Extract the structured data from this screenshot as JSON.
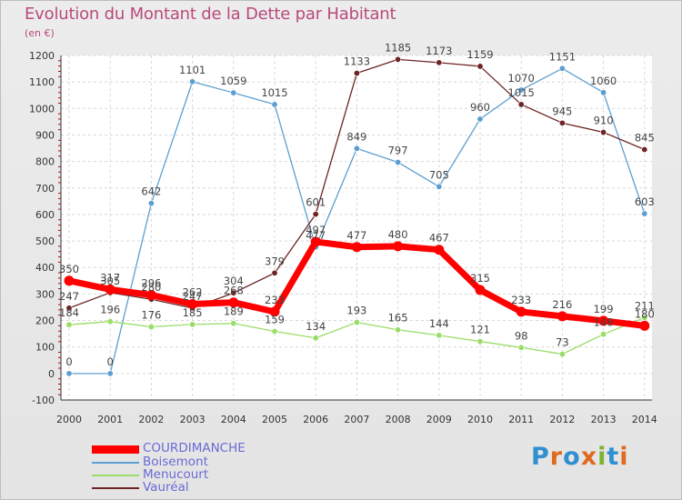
{
  "title": "Evolution du Montant de la Dette par Habitant",
  "unit": "(en €)",
  "logo": {
    "letters": [
      "P",
      "r",
      "o",
      "x",
      "i",
      "t",
      "i"
    ],
    "colors": [
      "#2f8fd0",
      "#e06a1e",
      "#2f8fd0",
      "#e06a1e",
      "#7ab32e",
      "#2f8fd0",
      "#e06a1e"
    ]
  },
  "chart_data": {
    "type": "line",
    "title": "Evolution du Montant de la Dette par Habitant",
    "ylabel": "(en €)",
    "xlabel": "",
    "x": [
      "2000",
      "2001",
      "2002",
      "2003",
      "2004",
      "2005",
      "2006",
      "2007",
      "2008",
      "2009",
      "2010",
      "2011",
      "2012",
      "2013",
      "2014"
    ],
    "ylim": [
      -100,
      1200
    ],
    "yticks": [
      "-100",
      "0",
      "100",
      "200",
      "300",
      "400",
      "500",
      "600",
      "700",
      "800",
      "900",
      "1000",
      "1100",
      "1200"
    ],
    "grid": true,
    "legend": "bottom-left",
    "series": [
      {
        "name": "COURDIMANCHE",
        "color": "#ff0000",
        "values": [
          350,
          317,
          296,
          262,
          268,
          233,
          497,
          477,
          480,
          467,
          315,
          233,
          216,
          199,
          180
        ]
      },
      {
        "name": "Boisemont",
        "color": "#5b9fd1",
        "values": [
          0,
          0,
          642,
          1101,
          1059,
          1015,
          477,
          849,
          797,
          705,
          960,
          1070,
          1151,
          1060,
          603
        ]
      },
      {
        "name": "Menucourt",
        "color": "#99dd66",
        "values": [
          184,
          196,
          176,
          185,
          189,
          159,
          134,
          193,
          165,
          144,
          121,
          98,
          73,
          148,
          211
        ]
      },
      {
        "name": "Vauréal",
        "color": "#6e2424",
        "values": [
          247,
          305,
          280,
          247,
          304,
          379,
          601,
          1133,
          1185,
          1173,
          1159,
          1015,
          945,
          910,
          845
        ]
      }
    ]
  }
}
